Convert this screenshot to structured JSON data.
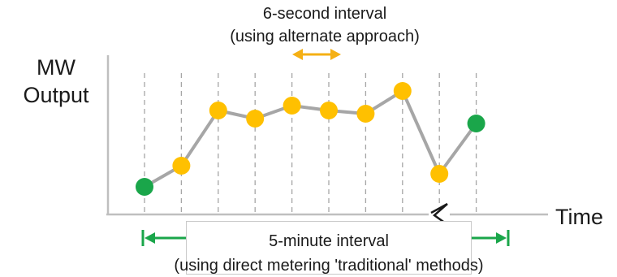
{
  "labels": {
    "y_axis_line1": "MW",
    "y_axis_line2": "Output",
    "x_axis": "Time",
    "top_interval_line1": "6-second interval",
    "top_interval_line2": "(using alternate approach)",
    "bottom_interval_line1": "5-minute interval",
    "bottom_interval_line2": "(using direct metering 'traditional' methods)"
  },
  "colors": {
    "endpoint": "#1aa64a",
    "interval_point": "#ffc000",
    "line": "#a6a6a6",
    "gridline": "#a6a6a6",
    "six_second_arrow": "#f5b014",
    "five_minute_arrow": "#1aa64a"
  },
  "series": [
    {
      "step": 0,
      "value": 1.7,
      "kind": "endpoint"
    },
    {
      "step": 1,
      "value": 3.0,
      "kind": "interval"
    },
    {
      "step": 2,
      "value": 6.4,
      "kind": "interval"
    },
    {
      "step": 3,
      "value": 5.9,
      "kind": "interval"
    },
    {
      "step": 4,
      "value": 6.7,
      "kind": "interval"
    },
    {
      "step": 5,
      "value": 6.4,
      "kind": "interval"
    },
    {
      "step": 6,
      "value": 6.2,
      "kind": "interval"
    },
    {
      "step": 7,
      "value": 7.6,
      "kind": "interval"
    },
    {
      "step": 8,
      "value": 2.5,
      "kind": "interval"
    },
    {
      "step": 9,
      "value": 5.6,
      "kind": "endpoint"
    }
  ],
  "axis_break_after_step": 7
}
